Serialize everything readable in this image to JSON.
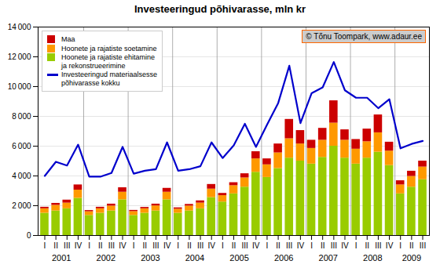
{
  "chart_data": {
    "type": "bar",
    "title": "Investeeringud põhivarasse, mln kr",
    "annotations": [
      "© Tõnu Toompark, www.adaur.ee"
    ],
    "categories": [
      "I",
      "II",
      "III",
      "IV",
      "I",
      "II",
      "III",
      "IV",
      "I",
      "II",
      "III",
      "IV",
      "I",
      "II",
      "III",
      "IV",
      "I",
      "II",
      "III",
      "IV",
      "I",
      "II",
      "III",
      "IV",
      "I",
      "II",
      "III",
      "IV",
      "I",
      "II",
      "III",
      "IV",
      "I",
      "II",
      "III"
    ],
    "category_groups": [
      2001,
      2001,
      2001,
      2001,
      2002,
      2002,
      2002,
      2002,
      2003,
      2003,
      2003,
      2003,
      2004,
      2004,
      2004,
      2004,
      2005,
      2005,
      2005,
      2005,
      2006,
      2006,
      2006,
      2006,
      2007,
      2007,
      2007,
      2007,
      2008,
      2008,
      2008,
      2008,
      2009,
      2009,
      2009
    ],
    "series": [
      {
        "name": "Maa",
        "color": "#cc0000",
        "values": [
          100,
          130,
          200,
          350,
          80,
          100,
          130,
          300,
          80,
          90,
          120,
          260,
          90,
          110,
          150,
          310,
          150,
          200,
          280,
          480,
          400,
          600,
          1300,
          900,
          550,
          800,
          1500,
          700,
          650,
          850,
          1200,
          600,
          280,
          350,
          400
        ]
      },
      {
        "name": "Hoonete ja rajatiste soetamine",
        "color": "#ff9900",
        "values": [
          300,
          380,
          380,
          550,
          250,
          300,
          330,
          510,
          260,
          300,
          340,
          510,
          270,
          330,
          380,
          570,
          430,
          550,
          620,
          900,
          850,
          1050,
          1300,
          1150,
          1050,
          1150,
          1550,
          1200,
          1000,
          1100,
          1300,
          970,
          600,
          720,
          850
        ]
      },
      {
        "name": "Hoonete ja rajatiste ehitamine\nja rekonstrueerimine",
        "color": "#99cc00",
        "values": [
          1500,
          1650,
          1800,
          2500,
          1350,
          1500,
          1650,
          2400,
          1350,
          1500,
          1650,
          2400,
          1500,
          1650,
          1800,
          2550,
          2250,
          2800,
          3250,
          4250,
          3900,
          4500,
          5200,
          5000,
          4800,
          5250,
          6000,
          5200,
          4800,
          5200,
          5600,
          4700,
          2800,
          3250,
          3750
        ]
      },
      {
        "name": "Investeeringud materiaalsesse\npõhivarasse kokku",
        "type": "line",
        "color": "#0000cc",
        "values": [
          4000,
          4950,
          4700,
          6100,
          3950,
          3950,
          4200,
          5950,
          4150,
          4350,
          4450,
          6250,
          4350,
          4450,
          4650,
          6250,
          5200,
          6050,
          7500,
          5950,
          7450,
          8900,
          11400,
          7550,
          9550,
          9950,
          11650,
          9750,
          9250,
          9250,
          8550,
          9150,
          5850,
          6150,
          6350
        ]
      }
    ],
    "stacked": true,
    "ylim": [
      0,
      14000
    ],
    "yticks": [
      0,
      {
        "value": 2000,
        "label": "2 000"
      },
      {
        "value": 4000,
        "label": "4 000"
      },
      {
        "value": 6000,
        "label": "6 000"
      },
      {
        "value": 8000,
        "label": "8 000"
      },
      {
        "value": 10000,
        "label": "10 000"
      },
      {
        "value": 12000,
        "label": "12 000"
      },
      {
        "value": 14000,
        "label": "14 000"
      }
    ],
    "grid": true,
    "legend": "upper left"
  }
}
